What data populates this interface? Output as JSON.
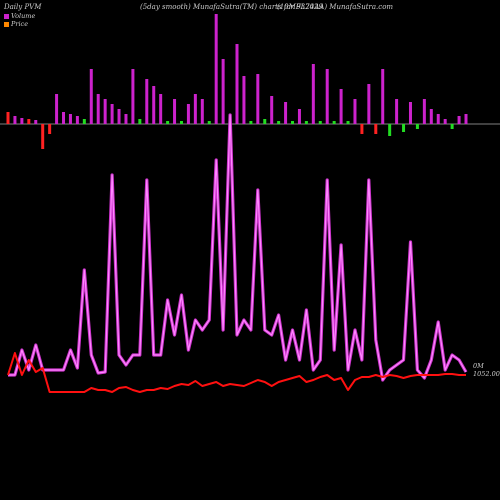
{
  "header": {
    "left": "Daily PVM",
    "center_left": "(5day smooth) MunafaSutra(TM) charts for 937029",
    "center_right": "(10MFL24AA) MunafaSutra.com"
  },
  "legend": [
    {
      "label": "Volume",
      "color": "#cc22cc"
    },
    {
      "label": "Price",
      "color": "#ff8800"
    }
  ],
  "axis_labels": {
    "volume_label": "0M",
    "price_label": "1052.00"
  },
  "colors": {
    "volume_up": "#cc22cc",
    "volume_down": "#ff2222",
    "volume_green": "#22dd22",
    "line_purple": "#cc33cc",
    "line_purple_light": "#ff88ff",
    "line_red": "#ff1010"
  },
  "chart_data": {
    "type": "line",
    "x": [
      0,
      1,
      2,
      3,
      4,
      5,
      6,
      7,
      8,
      9,
      10,
      11,
      12,
      13,
      14,
      15,
      16,
      17,
      18,
      19,
      20,
      21,
      22,
      23,
      24,
      25,
      26,
      27,
      28,
      29,
      30,
      31,
      32,
      33,
      34,
      35,
      36,
      37,
      38,
      39,
      40,
      41,
      42,
      43,
      44,
      45,
      46,
      47,
      48,
      49,
      50,
      51,
      52,
      53,
      54,
      55,
      56,
      57,
      58,
      59,
      60,
      61,
      62,
      63,
      64,
      65,
      66
    ],
    "series": [
      {
        "name": "Volume",
        "kind": "bar",
        "values": [
          {
            "v": 12,
            "c": "d"
          },
          {
            "v": 8,
            "c": "u"
          },
          {
            "v": 6,
            "c": "u"
          },
          {
            "v": 5,
            "c": "d"
          },
          {
            "v": 4,
            "c": "u"
          },
          {
            "v": -25,
            "c": "d"
          },
          {
            "v": -10,
            "c": "d"
          },
          {
            "v": 30,
            "c": "u"
          },
          {
            "v": 12,
            "c": "u"
          },
          {
            "v": 10,
            "c": "u"
          },
          {
            "v": 8,
            "c": "u"
          },
          {
            "v": 5,
            "c": "g"
          },
          {
            "v": 55,
            "c": "u"
          },
          {
            "v": 30,
            "c": "u"
          },
          {
            "v": 25,
            "c": "u"
          },
          {
            "v": 20,
            "c": "u"
          },
          {
            "v": 15,
            "c": "u"
          },
          {
            "v": 10,
            "c": "u"
          },
          {
            "v": 55,
            "c": "u"
          },
          {
            "v": 5,
            "c": "g"
          },
          {
            "v": 45,
            "c": "u"
          },
          {
            "v": 38,
            "c": "u"
          },
          {
            "v": 30,
            "c": "u"
          },
          {
            "v": 3,
            "c": "g"
          },
          {
            "v": 25,
            "c": "u"
          },
          {
            "v": 3,
            "c": "g"
          },
          {
            "v": 20,
            "c": "u"
          },
          {
            "v": 30,
            "c": "u"
          },
          {
            "v": 25,
            "c": "u"
          },
          {
            "v": 3,
            "c": "g"
          },
          {
            "v": 110,
            "c": "u"
          },
          {
            "v": 65,
            "c": "u"
          },
          {
            "v": 3,
            "c": "g"
          },
          {
            "v": 80,
            "c": "u"
          },
          {
            "v": 48,
            "c": "u"
          },
          {
            "v": 3,
            "c": "g"
          },
          {
            "v": 50,
            "c": "u"
          },
          {
            "v": 5,
            "c": "g"
          },
          {
            "v": 28,
            "c": "u"
          },
          {
            "v": 3,
            "c": "g"
          },
          {
            "v": 22,
            "c": "u"
          },
          {
            "v": 3,
            "c": "g"
          },
          {
            "v": 15,
            "c": "u"
          },
          {
            "v": 3,
            "c": "g"
          },
          {
            "v": 60,
            "c": "u"
          },
          {
            "v": 3,
            "c": "g"
          },
          {
            "v": 55,
            "c": "u"
          },
          {
            "v": 3,
            "c": "g"
          },
          {
            "v": 35,
            "c": "u"
          },
          {
            "v": 3,
            "c": "g"
          },
          {
            "v": 25,
            "c": "u"
          },
          {
            "v": -10,
            "c": "d"
          },
          {
            "v": 40,
            "c": "u"
          },
          {
            "v": -10,
            "c": "d"
          },
          {
            "v": 55,
            "c": "u"
          },
          {
            "v": -12,
            "c": "g"
          },
          {
            "v": 25,
            "c": "u"
          },
          {
            "v": -8,
            "c": "g"
          },
          {
            "v": 22,
            "c": "u"
          },
          {
            "v": -5,
            "c": "g"
          },
          {
            "v": 25,
            "c": "u"
          },
          {
            "v": 15,
            "c": "u"
          },
          {
            "v": 10,
            "c": "u"
          },
          {
            "v": 5,
            "c": "u"
          },
          {
            "v": -5,
            "c": "g"
          },
          {
            "v": 8,
            "c": "u"
          },
          {
            "v": 10,
            "c": "u"
          }
        ]
      },
      {
        "name": "",
        "kind": "line",
        "values": [
          375,
          375,
          350,
          370,
          345,
          370,
          370,
          370,
          370,
          350,
          368,
          270,
          355,
          373,
          372,
          175,
          355,
          365,
          355,
          355,
          180,
          355,
          355,
          300,
          335,
          295,
          350,
          320,
          330,
          320,
          160,
          330,
          115,
          335,
          320,
          330,
          190,
          330,
          335,
          315,
          360,
          330,
          360,
          310,
          370,
          360,
          180,
          350,
          245,
          370,
          330,
          360,
          180,
          340,
          380,
          370,
          365,
          360,
          242,
          370,
          378,
          360,
          322,
          370,
          355,
          360,
          372
        ]
      },
      {
        "name": "",
        "kind": "line",
        "values": [
          375,
          353,
          375,
          360,
          372,
          368,
          392,
          392,
          392,
          392,
          392,
          392,
          388,
          390,
          390,
          392,
          388,
          387,
          390,
          392,
          390,
          390,
          388,
          389,
          386,
          384,
          385,
          381,
          386,
          384,
          382,
          386,
          384,
          385,
          386,
          383,
          380,
          382,
          386,
          382,
          380,
          378,
          376,
          382,
          380,
          377,
          375,
          380,
          378,
          390,
          380,
          377,
          377,
          375,
          377,
          375,
          376,
          378,
          376,
          375,
          375,
          375,
          375,
          374,
          374,
          375,
          375
        ]
      }
    ],
    "xlabel": "",
    "ylabel": ""
  }
}
